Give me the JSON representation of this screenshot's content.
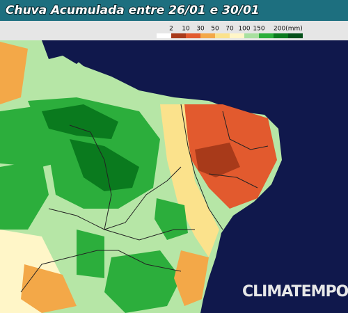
{
  "header": {
    "title": "Chuva Acumulada entre 26/01 e 30/01"
  },
  "legend": {
    "labels": [
      "2",
      "10",
      "30",
      "50",
      "70",
      "100",
      "150",
      "200(mm)"
    ],
    "colors": [
      "#ffffff",
      "#a83a1a",
      "#e25a2e",
      "#f3a848",
      "#fbe28c",
      "#fff6c8",
      "#a8e0a0",
      "#2cae3c",
      "#0a7a1e",
      "#04501a"
    ]
  },
  "watermark": "CLIMATEMPO"
}
